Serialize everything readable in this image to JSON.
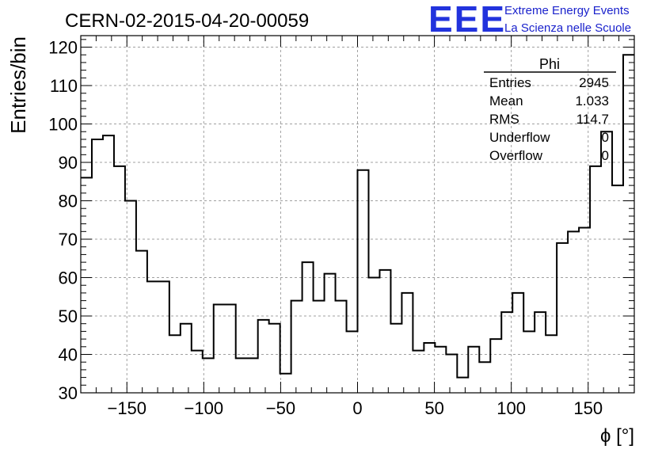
{
  "chart_data": {
    "type": "histogram",
    "title": "CERN-02-2015-04-20-00059",
    "xlabel": "ϕ [°]",
    "ylabel": "Entries/bin",
    "xlim": [
      -180,
      180
    ],
    "ylim": [
      30,
      123
    ],
    "grid": true,
    "bin_width": 7.2,
    "x_ticks": [
      -150,
      -100,
      -50,
      0,
      50,
      100,
      150
    ],
    "x_tick_labels": [
      "−150",
      "−100",
      "−50",
      "0",
      "50",
      "100",
      "150"
    ],
    "y_ticks": [
      30,
      40,
      50,
      60,
      70,
      80,
      90,
      100,
      110,
      120
    ],
    "y_tick_labels": [
      "30",
      "40",
      "50",
      "60",
      "70",
      "80",
      "90",
      "100",
      "110",
      "120"
    ],
    "bin_edges_start": -180,
    "values": [
      86,
      96,
      97,
      89,
      80,
      67,
      59,
      59,
      45,
      48,
      41,
      39,
      53,
      53,
      39,
      39,
      49,
      48,
      35,
      54,
      64,
      54,
      61,
      54,
      46,
      88,
      60,
      62,
      48,
      56,
      41,
      43,
      42,
      40,
      34,
      42,
      38,
      44,
      51,
      56,
      46,
      51,
      45,
      69,
      72,
      73,
      89,
      98,
      84,
      118
    ],
    "stats_box": {
      "title": "Phi",
      "rows": [
        {
          "label": "Entries",
          "value": "2945"
        },
        {
          "label": "Mean",
          "value": "1.033"
        },
        {
          "label": "RMS",
          "value": "114.7"
        },
        {
          "label": "Underflow",
          "value": "0"
        },
        {
          "label": "Overflow",
          "value": "0"
        }
      ]
    }
  },
  "logo": {
    "letters": "EEE",
    "line1": "Extreme Energy Events",
    "line2": "La Scienza nelle Scuole",
    "color": "#2233dd"
  }
}
